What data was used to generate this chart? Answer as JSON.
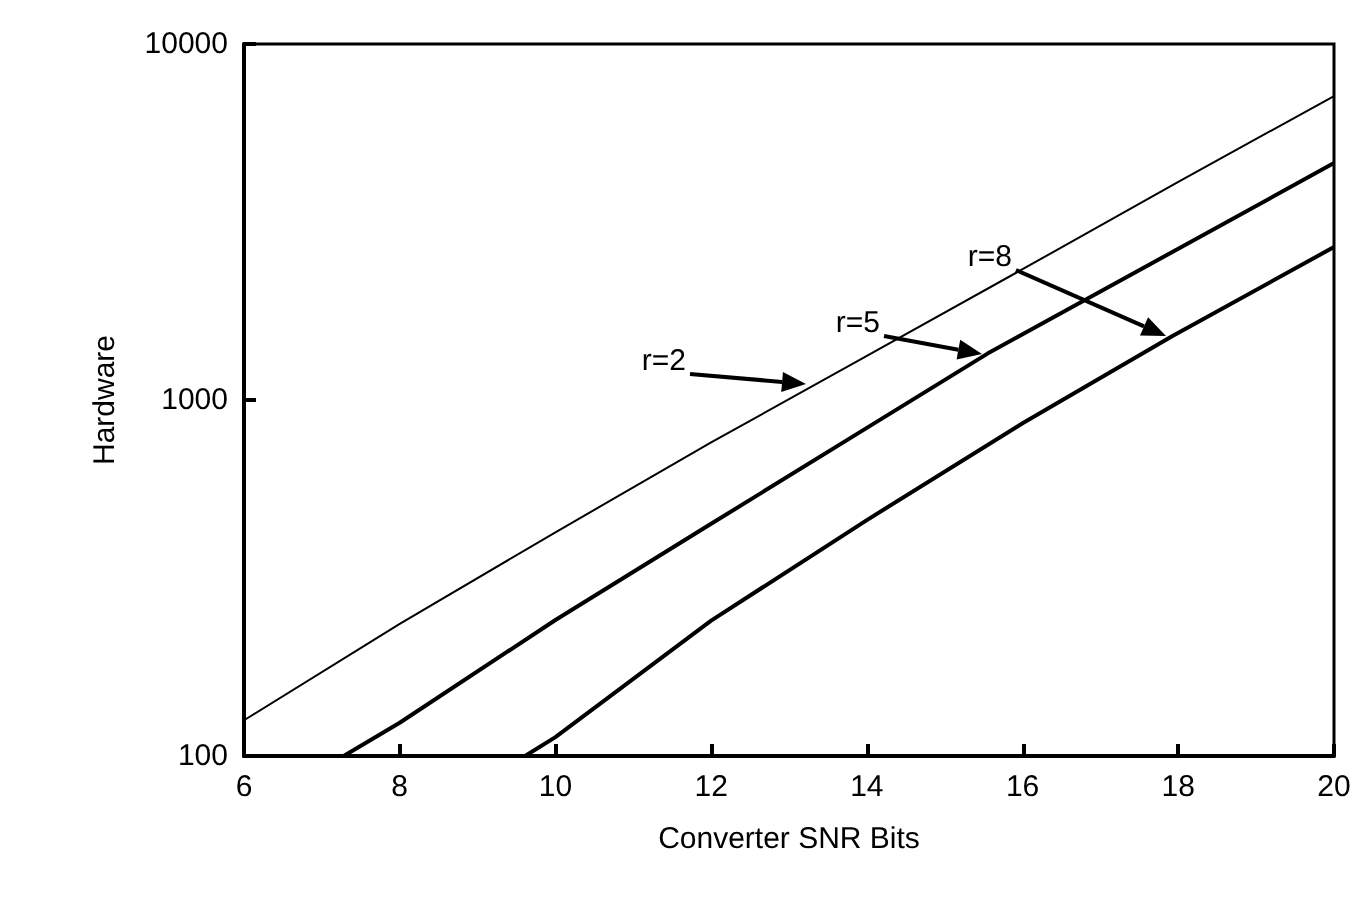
{
  "chart_data": {
    "type": "line",
    "xlabel": "Converter SNR Bits",
    "ylabel": "Hardware",
    "log": "y",
    "xlim": [
      6,
      20
    ],
    "xticks": [
      6,
      8,
      10,
      12,
      14,
      16,
      18,
      20
    ],
    "ylim": [
      100,
      10000
    ],
    "yticks": [
      100,
      1000,
      10000
    ],
    "grid": false,
    "marker": "none",
    "line_style": "solid",
    "series": [
      {
        "color": "#000000",
        "x": [
          6,
          8,
          10,
          12,
          14,
          16,
          18,
          20
        ],
        "values": [
          126,
          235,
          425,
          760,
          1330,
          2330,
          4100,
          7140
        ]
      },
      {
        "color": "#000000",
        "x": [
          7.28,
          8,
          10,
          12,
          14,
          15.55,
          16,
          18,
          20
        ],
        "values": [
          100,
          124,
          241,
          449,
          835,
          1350,
          1530,
          2660,
          4630
        ]
      },
      {
        "color": "#000000",
        "x": [
          9.61,
          10,
          12,
          14,
          16,
          17.92,
          20
        ],
        "values": [
          100,
          113,
          240,
          460,
          860,
          1510,
          2690
        ]
      }
    ],
    "annotations": [
      "r=2",
      "r=5",
      "r=8"
    ]
  }
}
